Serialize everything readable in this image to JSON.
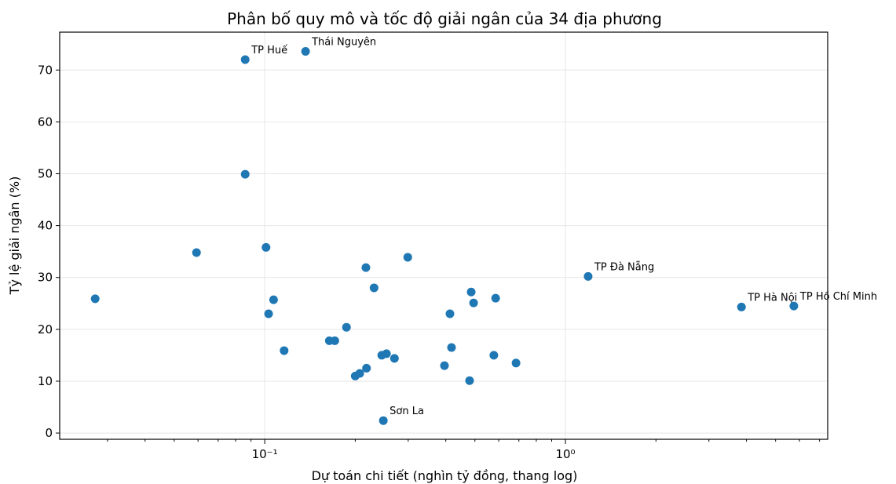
{
  "chart_data": {
    "type": "scatter",
    "title": "Phân bố quy mô và tốc độ giải ngân của 34 địa phương",
    "xlabel": "Dự toán chi tiết (nghìn tỷ đồng, thang log)",
    "ylabel": "Tỷ lệ giải ngân (%)",
    "xscale": "log",
    "grid": true,
    "color": "#1f77b4",
    "xlim": [
      0.0208,
      7.45
    ],
    "ylim": [
      -1.2,
      77.3
    ],
    "xticks": [
      {
        "value": 0.1,
        "label": "10⁻¹"
      },
      {
        "value": 1,
        "label": "10⁰"
      }
    ],
    "xminorticks": [
      0.03,
      0.04,
      0.05,
      0.06,
      0.07,
      0.08,
      0.09,
      0.2,
      0.3,
      0.4,
      0.5,
      0.6,
      0.7,
      0.8,
      0.9,
      2,
      3,
      4,
      5,
      6,
      7
    ],
    "yticks": [
      0,
      10,
      20,
      30,
      40,
      50,
      60,
      70
    ],
    "x": [
      0.0273,
      0.0593,
      0.0861,
      0.0861,
      0.1367,
      0.101,
      0.103,
      0.107,
      0.116,
      0.164,
      0.171,
      0.187,
      0.2,
      0.207,
      0.217,
      0.218,
      0.231,
      0.245,
      0.248,
      0.254,
      0.27,
      0.299,
      0.396,
      0.413,
      0.418,
      0.48,
      0.486,
      0.495,
      0.578,
      0.586,
      0.685,
      1.19,
      3.85,
      5.75
    ],
    "values": [
      25.9,
      34.8,
      72.0,
      49.9,
      73.6,
      35.8,
      23.0,
      25.7,
      15.9,
      17.8,
      17.8,
      20.4,
      11.0,
      11.5,
      31.9,
      12.5,
      28.0,
      15.0,
      2.4,
      15.3,
      14.4,
      33.9,
      13.0,
      23.0,
      16.5,
      10.1,
      27.2,
      25.1,
      15.0,
      26.0,
      13.5,
      30.2,
      24.3,
      24.5
    ],
    "labels": [
      null,
      null,
      "TP Huế",
      null,
      "Thái Nguyên",
      null,
      null,
      null,
      null,
      null,
      null,
      null,
      null,
      null,
      null,
      null,
      null,
      null,
      "Sơn La",
      null,
      null,
      null,
      null,
      null,
      null,
      null,
      null,
      null,
      null,
      null,
      null,
      "TP Đà Nẵng",
      "TP Hà Nội",
      "TP Hồ Chí Minh"
    ]
  }
}
